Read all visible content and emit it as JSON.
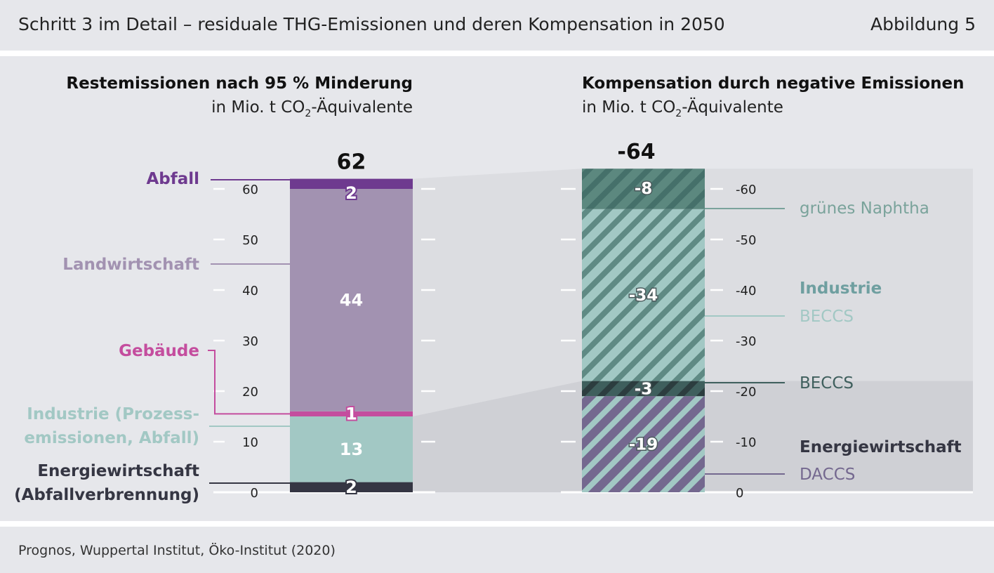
{
  "header": {
    "title": "Schritt 3 im Detail – residuale THG-Emissionen und deren Kompensation in 2050",
    "figure_number": "Abbildung 5"
  },
  "footer": {
    "source": "Prognos, Wuppertal Institut, Öko-Institut (2020)"
  },
  "colors": {
    "band": "#e6e7eb",
    "abfall": "#6e3a8f",
    "landwirtschaft": "#a292b1",
    "gebaeude": "#c44d9e",
    "industrie_prozess": "#a2c8c4",
    "energie": "#353643",
    "naphtha_dark": "#5c887f",
    "beccs_industrie_light": "#a2c8c4",
    "beccs_energie_dark": "#3f5f5d",
    "daccs": "#74688f",
    "panel_top": "#dcdde1",
    "panel_bottom": "#cfd0d5"
  },
  "chart_data": [
    {
      "type": "bar",
      "stacked": true,
      "title": "Restemissionen nach 95 % Minderung",
      "subtitle_prefix": "in Mio. t CO",
      "subtitle_sub": "2",
      "subtitle_suffix": "-Äquivalente",
      "total_label": "62",
      "ylim": [
        0,
        62
      ],
      "yticks": [
        0,
        10,
        20,
        30,
        40,
        50,
        60
      ],
      "ytick_labels": [
        "0",
        "10",
        "20",
        "30",
        "40",
        "50",
        "60"
      ],
      "series": [
        {
          "key": "energie",
          "name": "Energiewirtschaft (Abfallverbrennung)",
          "label_lines": [
            "Energiewirtschaft",
            "(Abfallverbrennung)"
          ],
          "value": 2,
          "value_label": "2"
        },
        {
          "key": "industrie_prozess",
          "name": "Industrie (Prozessemissionen, Abfall)",
          "label_lines": [
            "Industrie (Prozess-",
            "emissionen, Abfall)"
          ],
          "value": 13,
          "value_label": "13"
        },
        {
          "key": "gebaeude",
          "name": "Gebäude",
          "label_lines": [
            "Gebäude"
          ],
          "value": 1,
          "value_label": "1"
        },
        {
          "key": "landwirtschaft",
          "name": "Landwirtschaft",
          "label_lines": [
            "Landwirtschaft"
          ],
          "value": 44,
          "value_label": "44"
        },
        {
          "key": "abfall",
          "name": "Abfall",
          "label_lines": [
            "Abfall"
          ],
          "value": 2,
          "value_label": "2"
        }
      ]
    },
    {
      "type": "bar",
      "stacked": true,
      "title": "Kompensation durch negative Emissionen",
      "subtitle_prefix": "in Mio. t CO",
      "subtitle_sub": "2",
      "subtitle_suffix": "-Äquivalente",
      "total_label": "-64",
      "ylim": [
        0,
        -64
      ],
      "yticks": [
        0,
        -10,
        -20,
        -30,
        -40,
        -50,
        -60
      ],
      "ytick_labels": [
        "0",
        "-10",
        "-20",
        "-30",
        "-40",
        "-50",
        "-60"
      ],
      "group_labels": [
        {
          "text": "Energiewirtschaft",
          "group": "energie"
        },
        {
          "text": "Industrie",
          "group": "industrie"
        }
      ],
      "series": [
        {
          "key": "daccs",
          "name": "DACCS",
          "group": "energie",
          "value": -19,
          "value_label": "-19"
        },
        {
          "key": "beccs_energie_dark",
          "name": "BECCS",
          "group": "energie",
          "value": -3,
          "value_label": "-3"
        },
        {
          "key": "beccs_industrie_light",
          "name": "BECCS",
          "group": "industrie",
          "value": -34,
          "value_label": "-34"
        },
        {
          "key": "naphtha_dark",
          "name": "grünes Naphtha",
          "group": "industrie",
          "value": -8,
          "value_label": "-8"
        }
      ]
    }
  ]
}
